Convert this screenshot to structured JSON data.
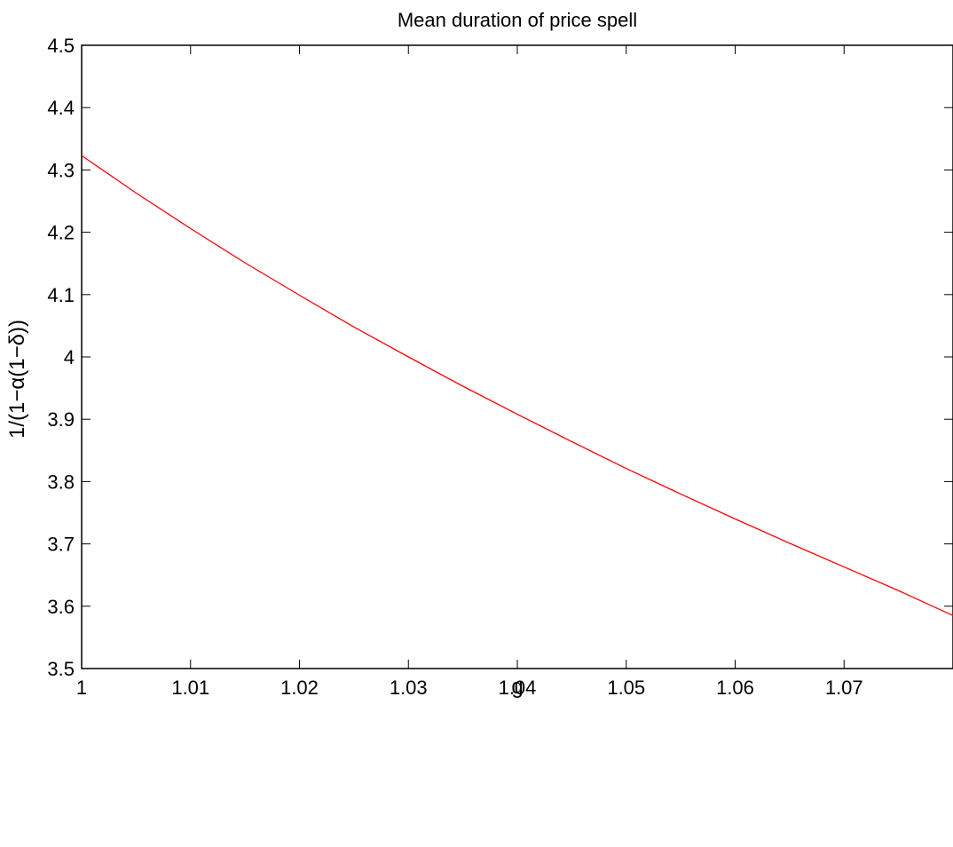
{
  "chart_data": {
    "type": "line",
    "title": "Mean duration of price spell",
    "xlabel": "g",
    "ylabel": "1/(1−α(1−δ))",
    "xlim": [
      1.0,
      1.08
    ],
    "ylim": [
      3.5,
      4.5
    ],
    "xticks": [
      1,
      1.01,
      1.02,
      1.03,
      1.04,
      1.05,
      1.06,
      1.07
    ],
    "xtick_labels": [
      "1",
      "1.01",
      "1.02",
      "1.03",
      "1.04",
      "1.05",
      "1.06",
      "1.07"
    ],
    "yticks": [
      3.5,
      3.6,
      3.7,
      3.8,
      3.9,
      4.0,
      4.1,
      4.2,
      4.3,
      4.4,
      4.5
    ],
    "ytick_labels": [
      "3.5",
      "3.6",
      "3.7",
      "3.8",
      "3.9",
      "4",
      "4.1",
      "4.2",
      "4.3",
      "4.4",
      "4.5"
    ],
    "grid": false,
    "series": [
      {
        "color": "#ff0000",
        "x": [
          1.0,
          1.005,
          1.01,
          1.015,
          1.02,
          1.025,
          1.03,
          1.035,
          1.04,
          1.045,
          1.05,
          1.055,
          1.06,
          1.065,
          1.07,
          1.075,
          1.08
        ],
        "y": [
          4.323,
          4.263,
          4.206,
          4.151,
          4.099,
          4.048,
          4.0,
          3.953,
          3.908,
          3.864,
          3.821,
          3.78,
          3.74,
          3.701,
          3.663,
          3.625,
          3.585
        ]
      }
    ]
  }
}
